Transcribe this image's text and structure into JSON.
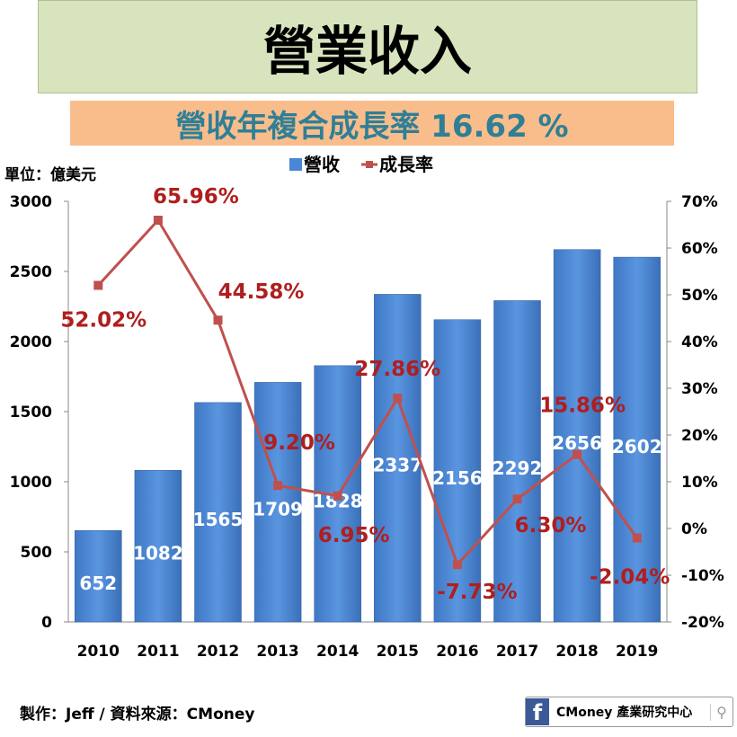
{
  "title": "營業收入",
  "subtitle": "營收年複合成長率  16.62 %",
  "footer": "製作：Jeff / 資料來源：CMoney",
  "logo_text": "CMoney 產業研究中心",
  "chart_data": {
    "type": "bar+line",
    "ylabel": "單位：億美元",
    "categories": [
      "2010",
      "2011",
      "2012",
      "2013",
      "2014",
      "2015",
      "2016",
      "2017",
      "2018",
      "2019"
    ],
    "series": [
      {
        "name": "營收",
        "type": "bar",
        "axis": "left",
        "color": "#4a86d4",
        "values": [
          652,
          1082,
          1565,
          1709,
          1828,
          2337,
          2156,
          2292,
          2656,
          2602
        ]
      },
      {
        "name": "成長率",
        "type": "line",
        "axis": "right",
        "color": "#c0504d",
        "values": [
          52.02,
          65.96,
          44.58,
          9.2,
          6.95,
          27.86,
          -7.73,
          6.3,
          15.86,
          -2.04
        ],
        "labels": [
          "52.02%",
          "65.96%",
          "44.58%",
          "9.20%",
          "6.95%",
          "27.86%",
          "-7.73%",
          "6.30%",
          "15.86%",
          "-2.04%"
        ]
      }
    ],
    "ylim_left": [
      0,
      3000
    ],
    "yticks_left": [
      "0",
      "500",
      "1000",
      "1500",
      "2000",
      "2500",
      "3000"
    ],
    "ylim_right": [
      -20,
      70
    ],
    "yticks_right": [
      "-20%",
      "-10%",
      "0%",
      "10%",
      "20%",
      "30%",
      "40%",
      "50%",
      "60%",
      "70%"
    ],
    "legend": "top-center"
  }
}
